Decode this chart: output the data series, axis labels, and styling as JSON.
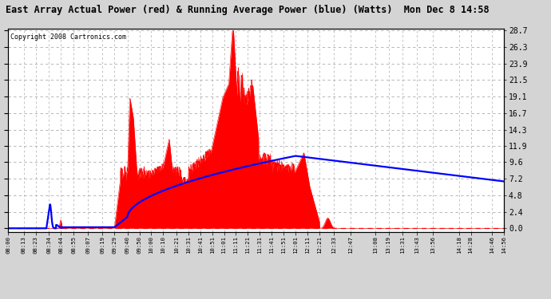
{
  "title": "East Array Actual Power (red) & Running Average Power (blue) (Watts)  Mon Dec 8 14:58",
  "copyright": "Copyright 2008 Cartronics.com",
  "ylabel_right": [
    "0.0",
    "2.4",
    "4.8",
    "7.2",
    "9.6",
    "11.9",
    "14.3",
    "16.7",
    "19.1",
    "21.5",
    "23.9",
    "26.3",
    "28.7"
  ],
  "ymax": 28.7,
  "ymin": 0.0,
  "bg_color": "#d4d4d4",
  "plot_bg_color": "#ffffff",
  "grid_color": "#aaaaaa",
  "red_color": "#ff0000",
  "blue_color": "#0000ff",
  "x_tick_labels": [
    "08:00",
    "08:13",
    "08:23",
    "08:34",
    "08:44",
    "08:55",
    "09:07",
    "09:19",
    "09:29",
    "09:40",
    "09:50",
    "10:00",
    "10:10",
    "10:21",
    "10:31",
    "10:41",
    "10:51",
    "11:01",
    "11:11",
    "11:21",
    "11:31",
    "11:41",
    "11:51",
    "12:01",
    "12:11",
    "12:21",
    "12:33",
    "12:47",
    "13:08",
    "13:19",
    "13:31",
    "13:43",
    "13:56",
    "14:18",
    "14:28",
    "14:46",
    "14:56"
  ]
}
